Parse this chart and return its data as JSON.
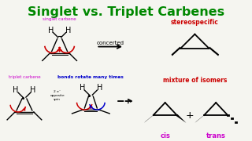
{
  "title": "Singlet vs. Triplet Carbenes",
  "title_color": "#008800",
  "title_fontsize": 11.5,
  "bg_color": "#f5f5f0",
  "singlet_label": "singlet carbene",
  "singlet_label_color": "#cc00cc",
  "triplet_label": "triplet carbene",
  "triplet_label_color": "#cc00cc",
  "concerted_text": "concerted",
  "stereospecific_text": "stereospecific",
  "stereospecific_color": "#cc0000",
  "bonds_rotate_text": "bonds rotate many times",
  "bonds_rotate_color": "#0000cc",
  "mixture_text": "mixture of isomers",
  "mixture_color": "#cc0000",
  "cis_text": "cis",
  "cis_color": "#cc00cc",
  "trans_text": "trans",
  "trans_color": "#cc00cc",
  "opposite_spin_text": "2 e⁻\nopposite\nspin",
  "red_arrow_color": "#cc0000",
  "blue_arrow_color": "#0000cc"
}
